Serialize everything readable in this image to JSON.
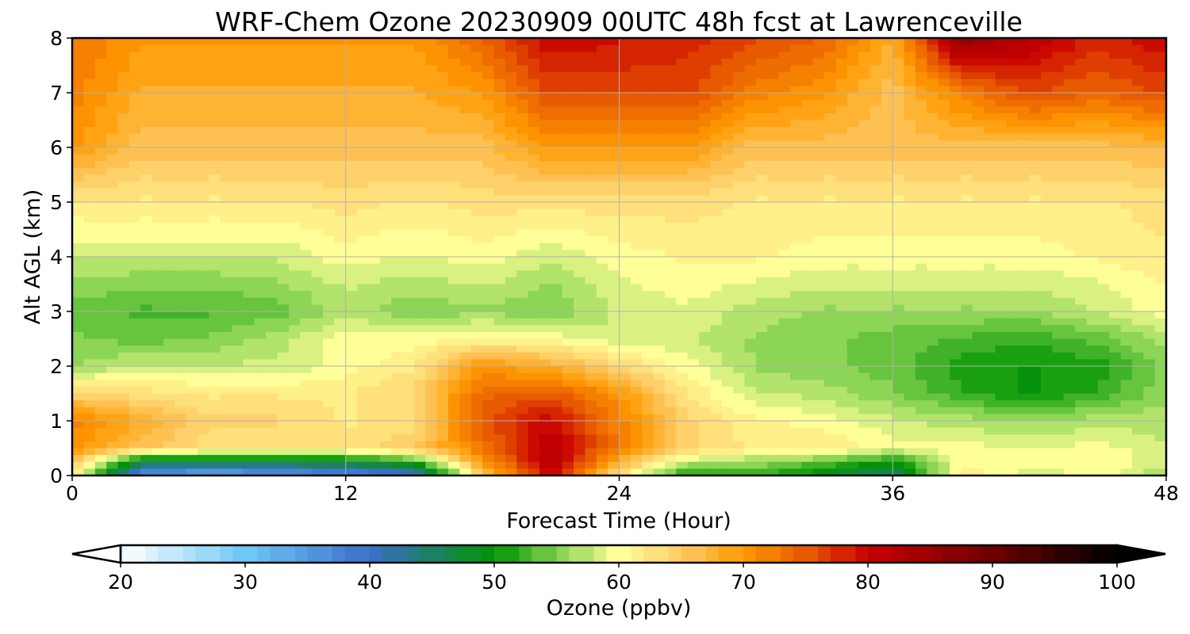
{
  "chart_data": {
    "type": "heatmap",
    "title": "WRF-Chem Ozone  20230909 00UTC 48h fcst at Lawrenceville",
    "xlabel": "Forecast Time (Hour)",
    "ylabel": "Alt AGL (km)",
    "xlim": [
      0,
      48
    ],
    "ylim": [
      0,
      8
    ],
    "xticks": [
      "0",
      "12",
      "24",
      "36",
      "48"
    ],
    "yticks": [
      "0",
      "1",
      "2",
      "3",
      "4",
      "5",
      "6",
      "7",
      "8"
    ],
    "grid": true,
    "colorbar": {
      "label": "Ozone  (ppbv)",
      "min": 20,
      "max": 100,
      "ticks": [
        "20",
        "30",
        "40",
        "50",
        "60",
        "70",
        "80",
        "90",
        "100"
      ],
      "extend": "both",
      "stops": [
        {
          "v": 20,
          "c": "#ffffff"
        },
        {
          "v": 30,
          "c": "#6ec8f5"
        },
        {
          "v": 40,
          "c": "#3a6fc9"
        },
        {
          "v": 50,
          "c": "#009400"
        },
        {
          "v": 55,
          "c": "#7fd04e"
        },
        {
          "v": 60,
          "c": "#ffff99"
        },
        {
          "v": 65,
          "c": "#ffcc66"
        },
        {
          "v": 70,
          "c": "#ff9900"
        },
        {
          "v": 75,
          "c": "#e85a00"
        },
        {
          "v": 80,
          "c": "#c80000"
        },
        {
          "v": 90,
          "c": "#6e0000"
        },
        {
          "v": 100,
          "c": "#000000"
        }
      ]
    },
    "z_hours": [
      0,
      3,
      6,
      9,
      12,
      15,
      18,
      21,
      24,
      27,
      30,
      33,
      36,
      39,
      42,
      45,
      48
    ],
    "z_altitudes_km": [
      0,
      0.25,
      0.5,
      1,
      1.5,
      2,
      2.5,
      3,
      3.5,
      4,
      5,
      6,
      7,
      8
    ],
    "z_ppbv": [
      [
        62,
        35,
        33,
        34,
        36,
        38,
        65,
        80,
        62,
        50,
        52,
        48,
        44,
        62,
        58,
        60,
        56
      ],
      [
        66,
        47,
        46,
        47,
        48,
        52,
        70,
        82,
        68,
        58,
        56,
        54,
        50,
        60,
        60,
        61,
        58
      ],
      [
        70,
        66,
        63,
        62,
        63,
        65,
        73,
        82,
        72,
        64,
        62,
        62,
        60,
        60,
        59,
        60,
        58
      ],
      [
        72,
        68,
        64,
        64,
        62,
        63,
        75,
        80,
        72,
        64,
        61,
        60,
        58,
        57,
        56,
        57,
        57
      ],
      [
        64,
        63,
        62,
        62,
        62,
        64,
        74,
        75,
        70,
        62,
        58,
        57,
        55,
        52,
        50,
        52,
        56
      ],
      [
        56,
        58,
        58,
        58,
        60,
        62,
        70,
        68,
        64,
        60,
        56,
        55,
        54,
        51,
        50,
        51,
        55
      ],
      [
        55,
        54,
        55,
        57,
        60,
        60,
        61,
        60,
        58,
        58,
        56,
        55,
        54,
        53,
        52,
        54,
        57
      ],
      [
        54,
        53,
        53,
        54,
        57,
        55,
        56,
        55,
        58,
        59,
        57,
        56,
        56,
        56,
        56,
        58,
        60
      ],
      [
        56,
        55,
        55,
        56,
        58,
        57,
        58,
        56,
        59,
        60,
        59,
        58,
        58,
        58,
        58,
        59,
        61
      ],
      [
        58,
        58,
        58,
        58,
        60,
        59,
        60,
        58,
        60,
        61,
        61,
        60,
        60,
        60,
        60,
        61,
        62
      ],
      [
        62,
        62,
        62,
        62,
        63,
        62,
        63,
        63,
        63,
        63,
        62,
        62,
        62,
        62,
        62,
        62,
        63
      ],
      [
        70,
        66,
        66,
        66,
        66,
        66,
        66,
        70,
        70,
        70,
        66,
        66,
        66,
        66,
        66,
        66,
        67
      ],
      [
        72,
        68,
        68,
        68,
        68,
        68,
        70,
        76,
        76,
        76,
        72,
        70,
        66,
        72,
        76,
        74,
        76
      ],
      [
        73,
        70,
        70,
        70,
        70,
        70,
        74,
        80,
        79,
        78,
        76,
        74,
        68,
        86,
        82,
        78,
        80
      ]
    ]
  }
}
